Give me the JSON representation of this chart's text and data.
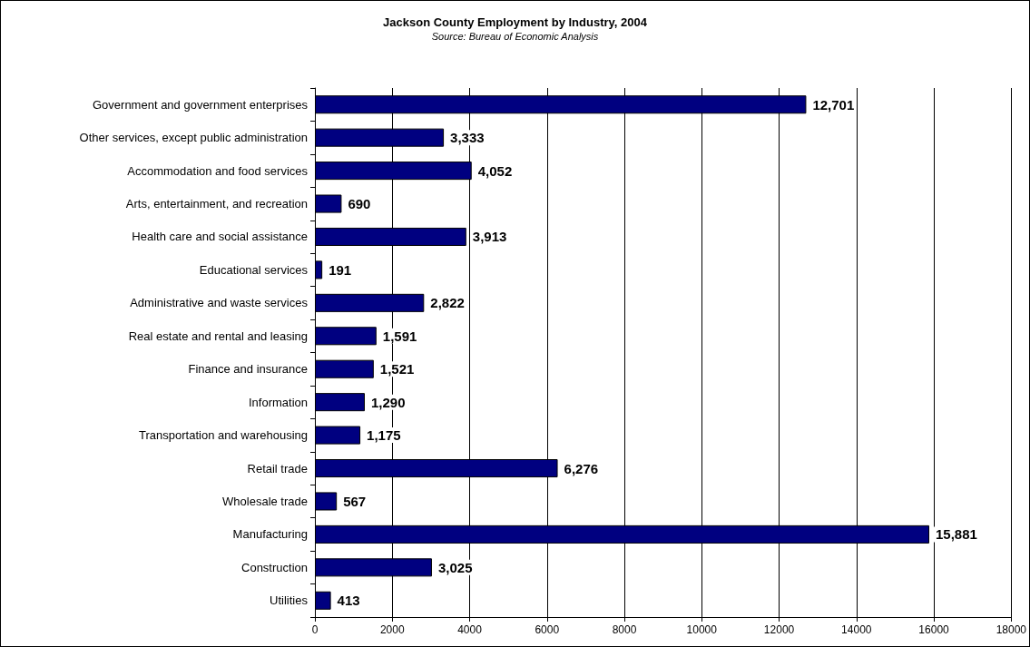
{
  "chart_data": {
    "type": "bar",
    "orientation": "horizontal",
    "title": "Jackson County Employment by Industry, 2004",
    "subtitle": "Source: Bureau of Economic Analysis",
    "categories": [
      "Government and government enterprises",
      "Other services, except public administration",
      "Accommodation and food services",
      "Arts, entertainment, and recreation",
      "Health care and social assistance",
      "Educational services",
      "Administrative and waste services",
      "Real estate and rental and leasing",
      "Finance and insurance",
      "Information",
      "Transportation and warehousing",
      "Retail trade",
      "Wholesale trade",
      "Manufacturing",
      "Construction",
      "Utilities"
    ],
    "values": [
      12701,
      3333,
      4052,
      690,
      3913,
      191,
      2822,
      1591,
      1521,
      1290,
      1175,
      6276,
      567,
      15881,
      3025,
      413
    ],
    "value_labels": [
      "12,701",
      "3,333",
      "4,052",
      "690",
      "3,913",
      "191",
      "2,822",
      "1,591",
      "1,521",
      "1,290",
      "1,175",
      "6,276",
      "567",
      "15,881",
      "3,025",
      "413"
    ],
    "color": "#000080",
    "xlim": [
      0,
      18000
    ],
    "xticks": [
      0,
      2000,
      4000,
      6000,
      8000,
      10000,
      12000,
      14000,
      16000,
      18000
    ],
    "grid": "x"
  }
}
